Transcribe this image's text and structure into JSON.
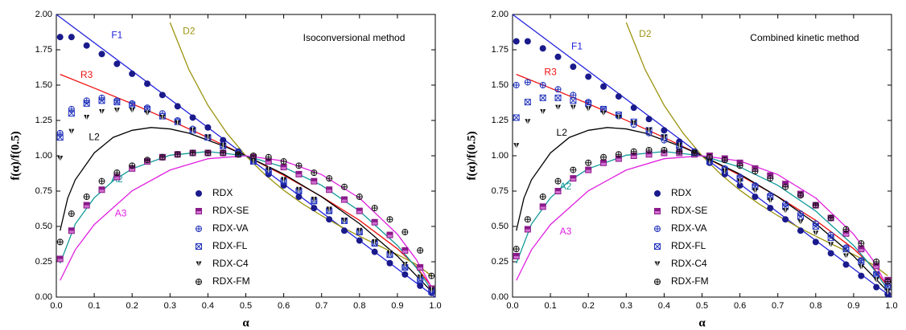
{
  "chart_data": [
    {
      "type": "line",
      "title": "Isoconversional method",
      "xlabel": "α",
      "ylabel": "f(α)/f(0.5)",
      "xlim": [
        0,
        1
      ],
      "xticks": [
        {
          "value": 0,
          "label": "0.0"
        },
        0.1,
        0.2,
        0.3,
        0.4,
        0.5,
        0.6,
        0.7,
        0.8,
        0.9,
        {
          "value": 1,
          "label": "1.0"
        }
      ],
      "ylim": [
        0,
        2
      ],
      "yticks": [
        {
          "value": 0,
          "label": "0.00"
        },
        0.25,
        {
          "value": 0.5,
          "label": "0.50"
        },
        0.75,
        {
          "value": 1,
          "label": "1.00"
        },
        1.25,
        {
          "value": 1.5,
          "label": "1.50"
        },
        1.75,
        {
          "value": 2,
          "label": "2.00"
        }
      ],
      "curves": [
        {
          "name": "F1",
          "color": "#2222dd",
          "x": [
            0,
            1
          ],
          "values": [
            2,
            0
          ]
        },
        {
          "name": "R3",
          "color": "#ee1111",
          "x": [
            0.01,
            0.1,
            0.2,
            0.3,
            0.4,
            0.5,
            0.6,
            0.7,
            0.8,
            0.9,
            0.95,
            0.99
          ],
          "values": [
            1.576,
            1.479,
            1.368,
            1.251,
            1.129,
            1,
            0.862,
            0.711,
            0.543,
            0.342,
            0.215,
            0.074
          ]
        },
        {
          "name": "D2",
          "color": "#9c9410",
          "x": [
            0.3,
            0.35,
            0.4,
            0.45,
            0.5,
            0.55,
            0.6,
            0.65,
            0.7,
            0.75,
            0.8,
            0.85,
            0.9,
            0.95,
            0.99
          ],
          "values": [
            1.943,
            1.609,
            1.357,
            1.16,
            1,
            0.868,
            0.756,
            0.66,
            0.576,
            0.5,
            0.431,
            0.365,
            0.301,
            0.231,
            0.151
          ]
        },
        {
          "name": "L2",
          "color": "#000000",
          "x": [
            0.01,
            0.03,
            0.05,
            0.1,
            0.15,
            0.2,
            0.25,
            0.3,
            0.35,
            0.4,
            0.45,
            0.5,
            0.6,
            0.7,
            0.8,
            0.9,
            0.99
          ],
          "values": [
            0.47,
            0.7,
            0.83,
            1.02,
            1.13,
            1.18,
            1.2,
            1.19,
            1.16,
            1.11,
            1.06,
            1,
            0.87,
            0.71,
            0.52,
            0.29,
            0.04
          ]
        },
        {
          "name": "A2",
          "color": "#119999",
          "x": [
            0.01,
            0.05,
            0.1,
            0.15,
            0.2,
            0.3,
            0.4,
            0.5,
            0.6,
            0.7,
            0.8,
            0.9,
            0.95,
            0.99
          ],
          "values": [
            0.239,
            0.517,
            0.702,
            0.823,
            0.908,
            1.004,
            1.03,
            1,
            0.92,
            0.791,
            0.609,
            0.365,
            0.208,
            0.052
          ]
        },
        {
          "name": "A3",
          "color": "#e020e0",
          "x": [
            0.01,
            0.05,
            0.1,
            0.2,
            0.3,
            0.4,
            0.5,
            0.6,
            0.7,
            0.8,
            0.9,
            0.95,
            0.99
          ],
          "values": [
            0.118,
            0.335,
            0.513,
            0.752,
            0.899,
            0.979,
            1,
            0.963,
            0.867,
            0.701,
            0.445,
            0.265,
            0.071
          ]
        }
      ],
      "x": [
        0.01,
        0.04,
        0.08,
        0.12,
        0.16,
        0.2,
        0.24,
        0.28,
        0.32,
        0.36,
        0.4,
        0.44,
        0.48,
        0.52,
        0.56,
        0.6,
        0.64,
        0.68,
        0.72,
        0.76,
        0.8,
        0.84,
        0.88,
        0.92,
        0.96,
        0.99
      ],
      "series": [
        {
          "name": "RDX",
          "color": "#1a1a8c",
          "marker": "filled-circle",
          "values": [
            1.84,
            1.84,
            1.78,
            1.72,
            1.65,
            1.58,
            1.51,
            1.43,
            1.35,
            1.27,
            1.2,
            1.11,
            1.03,
            0.96,
            0.87,
            0.79,
            0.71,
            0.63,
            0.55,
            0.47,
            0.4,
            0.32,
            0.24,
            0.16,
            0.08,
            0.03
          ]
        },
        {
          "name": "RDX-SE",
          "color": "#8a1a8a",
          "marker": "half-square",
          "values": [
            0.27,
            0.47,
            0.65,
            0.76,
            0.85,
            0.91,
            0.96,
            0.99,
            1.01,
            1.02,
            1.02,
            1.02,
            1.01,
            0.99,
            0.96,
            0.92,
            0.87,
            0.82,
            0.76,
            0.69,
            0.61,
            0.53,
            0.44,
            0.33,
            0.21,
            0.06
          ]
        },
        {
          "name": "RDX-VA",
          "color": "#2233bb",
          "marker": "circle-plus",
          "values": [
            1.16,
            1.33,
            1.39,
            1.41,
            1.39,
            1.37,
            1.34,
            1.3,
            1.25,
            1.19,
            1.13,
            1.07,
            1.02,
            0.96,
            0.89,
            0.82,
            0.75,
            0.68,
            0.61,
            0.54,
            0.46,
            0.38,
            0.3,
            0.21,
            0.12,
            0.04
          ]
        },
        {
          "name": "RDX-FL",
          "color": "#2233bb",
          "marker": "square-cross",
          "values": [
            1.13,
            1.3,
            1.37,
            1.39,
            1.38,
            1.36,
            1.33,
            1.28,
            1.24,
            1.18,
            1.13,
            1.07,
            1.02,
            0.96,
            0.89,
            0.82,
            0.75,
            0.68,
            0.61,
            0.54,
            0.46,
            0.38,
            0.3,
            0.21,
            0.12,
            0.04
          ]
        },
        {
          "name": "RDX-C4",
          "color": "#111111",
          "marker": "triangle-down",
          "values": [
            0.98,
            1.17,
            1.27,
            1.31,
            1.32,
            1.32,
            1.3,
            1.27,
            1.23,
            1.18,
            1.13,
            1.07,
            1.01,
            0.96,
            0.9,
            0.83,
            0.76,
            0.69,
            0.62,
            0.54,
            0.47,
            0.39,
            0.31,
            0.23,
            0.14,
            0.05
          ]
        },
        {
          "name": "RDX-FM",
          "color": "#111111",
          "marker": "circle-plus",
          "values": [
            0.39,
            0.59,
            0.71,
            0.82,
            0.88,
            0.93,
            0.97,
            0.99,
            1.01,
            1.02,
            1.02,
            1.02,
            1.01,
            1.0,
            0.99,
            0.96,
            0.93,
            0.88,
            0.84,
            0.78,
            0.71,
            0.63,
            0.55,
            0.46,
            0.33,
            0.15
          ]
        }
      ]
    },
    {
      "type": "line",
      "title": "Combined kinetic method",
      "xlabel": "α",
      "ylabel": "f(α)/f(0.5)",
      "xlim": [
        0,
        1
      ],
      "xticks": [
        {
          "value": 0,
          "label": "0.0"
        },
        0.1,
        0.2,
        0.3,
        0.4,
        0.5,
        0.6,
        0.7,
        0.8,
        0.9,
        {
          "value": 1,
          "label": "1.0"
        }
      ],
      "ylim": [
        0,
        2
      ],
      "yticks": [
        {
          "value": 0,
          "label": "0.00"
        },
        0.25,
        {
          "value": 0.5,
          "label": "0.50"
        },
        0.75,
        {
          "value": 1,
          "label": "1.00"
        },
        1.25,
        {
          "value": 1.5,
          "label": "1.50"
        },
        1.75,
        {
          "value": 2,
          "label": "2.00"
        }
      ],
      "curves": [
        {
          "name": "F1",
          "color": "#2222dd",
          "x": [
            0,
            1
          ],
          "values": [
            2,
            0
          ]
        },
        {
          "name": "R3",
          "color": "#ee1111",
          "x": [
            0.01,
            0.1,
            0.2,
            0.3,
            0.4,
            0.5,
            0.6,
            0.7,
            0.8,
            0.9,
            0.95,
            0.99
          ],
          "values": [
            1.576,
            1.479,
            1.368,
            1.251,
            1.129,
            1,
            0.862,
            0.711,
            0.543,
            0.342,
            0.215,
            0.074
          ]
        },
        {
          "name": "D2",
          "color": "#9c9410",
          "x": [
            0.3,
            0.35,
            0.4,
            0.45,
            0.5,
            0.55,
            0.6,
            0.65,
            0.7,
            0.75,
            0.8,
            0.85,
            0.9,
            0.95,
            0.99
          ],
          "values": [
            1.943,
            1.609,
            1.357,
            1.16,
            1,
            0.868,
            0.756,
            0.66,
            0.576,
            0.5,
            0.431,
            0.365,
            0.301,
            0.231,
            0.151
          ]
        },
        {
          "name": "L2",
          "color": "#000000",
          "x": [
            0.01,
            0.03,
            0.05,
            0.1,
            0.15,
            0.2,
            0.25,
            0.3,
            0.35,
            0.4,
            0.45,
            0.5,
            0.6,
            0.7,
            0.8,
            0.9,
            0.99
          ],
          "values": [
            0.47,
            0.7,
            0.83,
            1.02,
            1.13,
            1.18,
            1.2,
            1.19,
            1.16,
            1.11,
            1.06,
            1,
            0.87,
            0.71,
            0.52,
            0.29,
            0.04
          ]
        },
        {
          "name": "A2",
          "color": "#119999",
          "x": [
            0.01,
            0.05,
            0.1,
            0.15,
            0.2,
            0.3,
            0.4,
            0.5,
            0.6,
            0.7,
            0.8,
            0.9,
            0.95,
            0.99
          ],
          "values": [
            0.239,
            0.517,
            0.702,
            0.823,
            0.908,
            1.004,
            1.03,
            1,
            0.92,
            0.791,
            0.609,
            0.365,
            0.208,
            0.052
          ]
        },
        {
          "name": "A3",
          "color": "#e020e0",
          "x": [
            0.01,
            0.05,
            0.1,
            0.2,
            0.3,
            0.4,
            0.5,
            0.6,
            0.7,
            0.8,
            0.9,
            0.95,
            0.99
          ],
          "values": [
            0.118,
            0.335,
            0.513,
            0.752,
            0.899,
            0.979,
            1,
            0.963,
            0.867,
            0.701,
            0.445,
            0.265,
            0.071
          ]
        }
      ],
      "x": [
        0.01,
        0.04,
        0.08,
        0.12,
        0.16,
        0.2,
        0.24,
        0.28,
        0.32,
        0.36,
        0.4,
        0.44,
        0.48,
        0.52,
        0.56,
        0.6,
        0.64,
        0.68,
        0.72,
        0.76,
        0.8,
        0.84,
        0.88,
        0.92,
        0.96,
        0.99
      ],
      "series": [
        {
          "name": "RDX",
          "color": "#1a1a8c",
          "marker": "filled-circle",
          "values": [
            1.81,
            1.81,
            1.76,
            1.7,
            1.63,
            1.56,
            1.49,
            1.42,
            1.34,
            1.26,
            1.18,
            1.1,
            1.03,
            0.95,
            0.87,
            0.79,
            0.71,
            0.63,
            0.55,
            0.47,
            0.39,
            0.31,
            0.23,
            0.15,
            0.07,
            0.02
          ]
        },
        {
          "name": "RDX-SE",
          "color": "#8a1a8a",
          "marker": "half-square",
          "values": [
            0.29,
            0.48,
            0.64,
            0.75,
            0.84,
            0.9,
            0.95,
            0.98,
            1.0,
            1.01,
            1.02,
            1.02,
            1.01,
            1.0,
            0.98,
            0.95,
            0.91,
            0.86,
            0.8,
            0.73,
            0.65,
            0.56,
            0.45,
            0.34,
            0.22,
            0.12
          ]
        },
        {
          "name": "RDX-VA",
          "color": "#2233bb",
          "marker": "circle-plus",
          "values": [
            1.5,
            1.52,
            1.5,
            1.47,
            1.43,
            1.38,
            1.33,
            1.28,
            1.22,
            1.16,
            1.11,
            1.06,
            1.02,
            0.96,
            0.91,
            0.85,
            0.79,
            0.72,
            0.66,
            0.59,
            0.52,
            0.44,
            0.35,
            0.26,
            0.16,
            0.08
          ]
        },
        {
          "name": "RDX-FL",
          "color": "#2233bb",
          "marker": "square-cross",
          "values": [
            1.27,
            1.38,
            1.41,
            1.41,
            1.39,
            1.37,
            1.33,
            1.29,
            1.24,
            1.18,
            1.13,
            1.07,
            1.02,
            0.96,
            0.9,
            0.84,
            0.78,
            0.71,
            0.64,
            0.57,
            0.5,
            0.42,
            0.34,
            0.25,
            0.16,
            0.07
          ]
        },
        {
          "name": "RDX-C4",
          "color": "#111111",
          "marker": "triangle-down",
          "values": [
            1.07,
            1.24,
            1.31,
            1.34,
            1.34,
            1.33,
            1.3,
            1.27,
            1.23,
            1.18,
            1.13,
            1.07,
            1.02,
            0.96,
            0.89,
            0.82,
            0.75,
            0.68,
            0.61,
            0.53,
            0.45,
            0.37,
            0.29,
            0.21,
            0.12,
            0.04
          ]
        },
        {
          "name": "RDX-FM",
          "color": "#111111",
          "marker": "circle-plus",
          "values": [
            0.34,
            0.55,
            0.71,
            0.82,
            0.9,
            0.95,
            0.99,
            1.01,
            1.03,
            1.04,
            1.04,
            1.03,
            1.02,
            0.99,
            0.97,
            0.93,
            0.89,
            0.84,
            0.78,
            0.72,
            0.65,
            0.56,
            0.48,
            0.38,
            0.25,
            0.11
          ]
        }
      ]
    }
  ]
}
